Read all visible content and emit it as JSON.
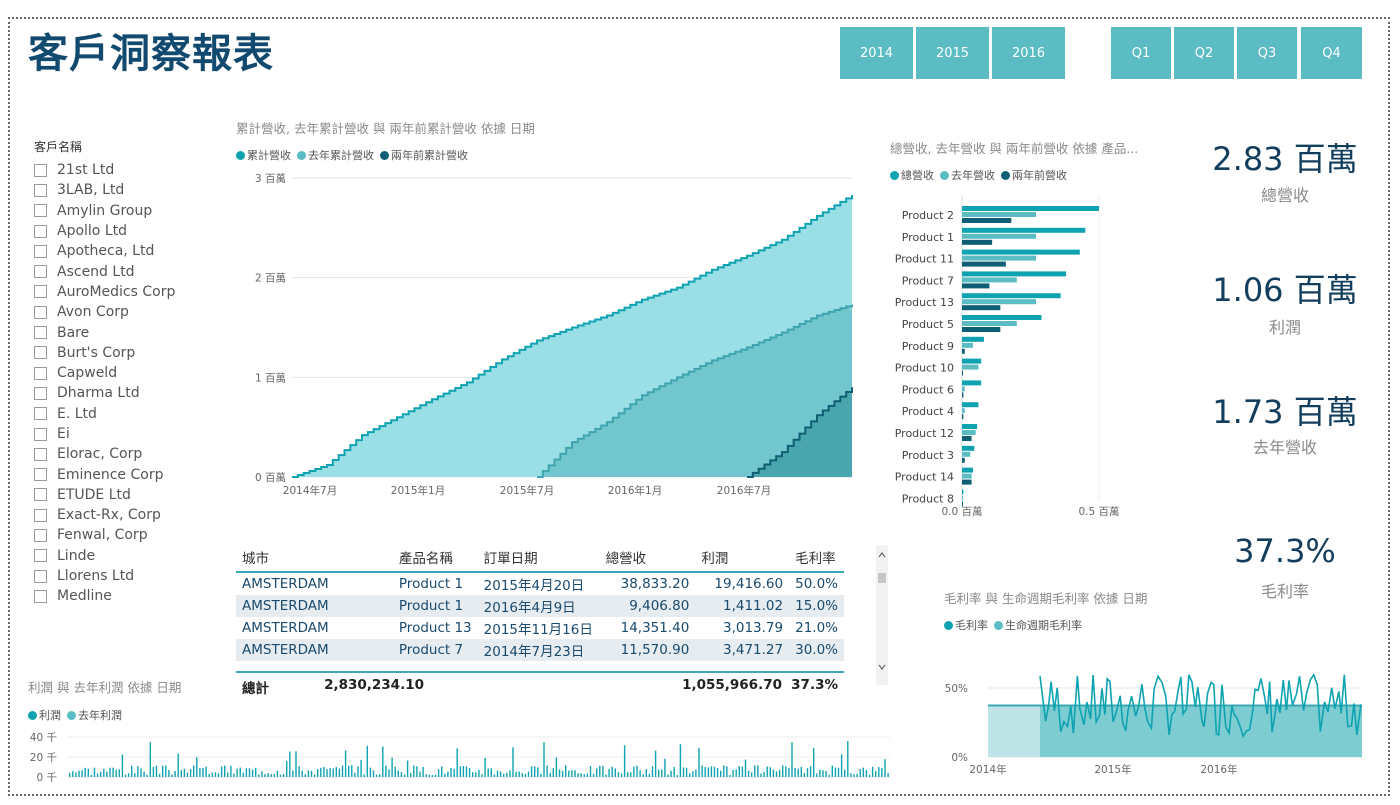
{
  "title": "客戶洞察報表",
  "year_buttons": [
    "2014",
    "2015",
    "2016"
  ],
  "quarter_buttons": [
    "Q1",
    "Q2",
    "Q3",
    "Q4"
  ],
  "slicer": {
    "title": "客戶名稱",
    "items": [
      "21st Ltd",
      "3LAB, Ltd",
      "Amylin Group",
      "Apollo Ltd",
      "Apotheca, Ltd",
      "Ascend Ltd",
      "AuroMedics Corp",
      "Avon Corp",
      "Bare",
      "Burt's Corp",
      "Capweld",
      "Dharma Ltd",
      "E. Ltd",
      "Ei",
      "Elorac, Corp",
      "Eminence Corp",
      "ETUDE Ltd",
      "Exact-Rx, Corp",
      "Fenwal, Corp",
      "Linde",
      "Llorens Ltd",
      "Medline"
    ]
  },
  "colors": {
    "primary": "#0fa3b1",
    "secondary": "#5bbcc3",
    "tertiary": "#0e5f73",
    "button": "#5bbcc3",
    "title": "#114a6e"
  },
  "area_chart": {
    "title": "累計營收, 去年累計營收 與 兩年前累計營收 依據 日期",
    "legend": [
      "累計營收",
      "去年累計營收",
      "兩年前累計營收"
    ],
    "y_ticks": [
      "3 百萬",
      "2 百萬",
      "1 百萬",
      "0 百萬"
    ],
    "x_ticks": [
      "2014年7月",
      "2015年1月",
      "2015年7月",
      "2016年1月",
      "2016年7月"
    ]
  },
  "bar_chart": {
    "title": "總營收, 去年營收 與 兩年前營收 依據 產品...",
    "legend": [
      "總營收",
      "去年營收",
      "兩年前營收"
    ],
    "x_ticks": [
      "0.0 百萬",
      "0.5 百萬"
    ]
  },
  "chart_data": [
    {
      "type": "area",
      "title": "累計營收, 去年累計營收 與 兩年前累計營收 依據 日期",
      "x": [
        "2014-06",
        "2014-07",
        "2014-09",
        "2014-11",
        "2015-01",
        "2015-03",
        "2015-05",
        "2015-07",
        "2015-09",
        "2015-11",
        "2016-01",
        "2016-03",
        "2016-05",
        "2016-07",
        "2016-09",
        "2016-11",
        "2016-12"
      ],
      "series": [
        {
          "name": "累計營收",
          "values": [
            0,
            0.12,
            0.42,
            0.6,
            0.78,
            0.95,
            1.18,
            1.37,
            1.5,
            1.62,
            1.78,
            1.9,
            2.08,
            2.22,
            2.38,
            2.62,
            2.83
          ]
        },
        {
          "name": "去年累計營收",
          "values": [
            null,
            null,
            null,
            null,
            null,
            null,
            null,
            0,
            0.35,
            0.55,
            0.82,
            1.0,
            1.17,
            1.3,
            1.45,
            1.62,
            1.73
          ]
        },
        {
          "name": "兩年前累計營收",
          "values": [
            null,
            null,
            null,
            null,
            null,
            null,
            null,
            null,
            null,
            null,
            null,
            null,
            null,
            0,
            0.25,
            0.62,
            0.9
          ]
        }
      ],
      "ylim": [
        0,
        3
      ],
      "y_unit": "百萬"
    },
    {
      "type": "bar",
      "orientation": "horizontal",
      "title": "總營收, 去年營收 與 兩年前營收 依據 產品...",
      "categories": [
        "Product 2",
        "Product 1",
        "Product 11",
        "Product 7",
        "Product 13",
        "Product 5",
        "Product 9",
        "Product 10",
        "Product 6",
        "Product 4",
        "Product 12",
        "Product 3",
        "Product 14",
        "Product 8"
      ],
      "series": [
        {
          "name": "總營收",
          "values": [
            0.5,
            0.45,
            0.43,
            0.38,
            0.36,
            0.29,
            0.08,
            0.07,
            0.07,
            0.06,
            0.055,
            0.045,
            0.04,
            0.005
          ]
        },
        {
          "name": "去年營收",
          "values": [
            0.27,
            0.27,
            0.27,
            0.2,
            0.27,
            0.2,
            0.04,
            0.06,
            0.01,
            0.01,
            0.05,
            0.03,
            0.035,
            0.003
          ]
        },
        {
          "name": "兩年前營收",
          "values": [
            0.18,
            0.11,
            0.16,
            0.1,
            0.14,
            0.14,
            0.01,
            0.0,
            0.005,
            0.005,
            0.035,
            0.01,
            0.035,
            0.0
          ]
        }
      ],
      "xlim": [
        0,
        0.5
      ],
      "x_unit": "百萬"
    },
    {
      "type": "line",
      "title": "毛利率 與 生命週期毛利率 依據 日期",
      "x": [
        "2014年",
        "2015年",
        "2016年"
      ],
      "series": [
        {
          "name": "毛利率",
          "values": [
            37.3,
            50,
            37.3
          ]
        },
        {
          "name": "生命週期毛利率",
          "values": [
            37.3,
            37.3,
            37.3
          ]
        }
      ],
      "y_ticks": [
        "50%",
        "0%"
      ]
    },
    {
      "type": "bar",
      "title": "利潤 與 去年利潤 依據 日期",
      "series": [
        {
          "name": "利潤"
        },
        {
          "name": "去年利潤"
        }
      ],
      "y_ticks": [
        "40 千",
        "20 千",
        "0 千"
      ],
      "ylim": [
        0,
        40
      ]
    }
  ],
  "kpis": [
    {
      "value": "2.83 百萬",
      "label": "總營收"
    },
    {
      "value": "1.06 百萬",
      "label": "利潤"
    },
    {
      "value": "1.73 百萬",
      "label": "去年營收"
    },
    {
      "value": "37.3%",
      "label": "毛利率"
    }
  ],
  "table": {
    "headers": [
      "城市",
      "產品名稱",
      "訂單日期",
      "總營收",
      "利潤",
      "毛利率"
    ],
    "rows": [
      [
        "AMSTERDAM",
        "Product 1",
        "2015年4月20日",
        "38,833.20",
        "19,416.60",
        "50.0%"
      ],
      [
        "AMSTERDAM",
        "Product 1",
        "2016年4月9日",
        "9,406.80",
        "1,411.02",
        "15.0%"
      ],
      [
        "AMSTERDAM",
        "Product 13",
        "2015年11月16日",
        "14,351.40",
        "3,013.79",
        "21.0%"
      ],
      [
        "AMSTERDAM",
        "Product 7",
        "2014年7月23日",
        "11,570.90",
        "3,471.27",
        "30.0%"
      ]
    ],
    "total": {
      "label": "總計",
      "revenue": "2,830,234.10",
      "profit": "1,055,966.70",
      "margin": "37.3%"
    }
  },
  "margin_chart": {
    "title": "毛利率 與 生命週期毛利率 依據 日期",
    "legend": [
      "毛利率",
      "生命週期毛利率"
    ],
    "y_ticks": [
      "50%",
      "0%"
    ],
    "x_ticks": [
      "2014年",
      "2015年",
      "2016年"
    ]
  },
  "profit_chart": {
    "title": "利潤 與 去年利潤 依據 日期",
    "legend": [
      "利潤",
      "去年利潤"
    ],
    "y_ticks": [
      "40 千",
      "20 千",
      "0 千"
    ]
  }
}
